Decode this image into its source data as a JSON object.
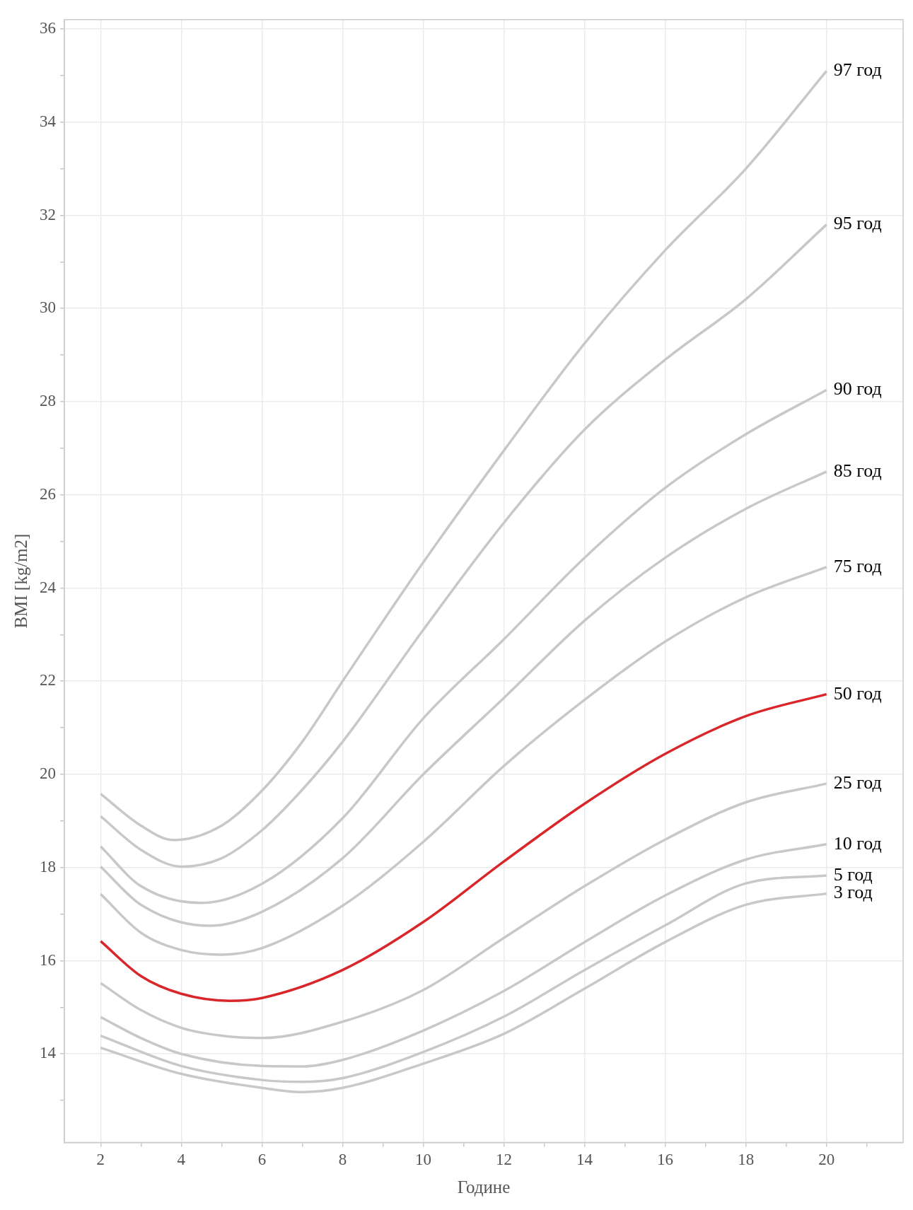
{
  "chart_data": {
    "type": "line",
    "xlabel": "Године",
    "ylabel": "BMI [kg/m2]",
    "xlim": [
      1.1,
      21.9
    ],
    "xticks": [
      2,
      {
        "value": 3,
        "label": null
      },
      4,
      {
        "value": 5,
        "label": null
      },
      6,
      {
        "value": 7,
        "label": null
      },
      8,
      {
        "value": 9,
        "label": null
      },
      10,
      {
        "value": 11,
        "label": null
      },
      12,
      {
        "value": 13,
        "label": null
      },
      14,
      {
        "value": 15,
        "label": null
      },
      16,
      {
        "value": 17,
        "label": null
      },
      18,
      {
        "value": 19,
        "label": null
      },
      20,
      {
        "value": 21,
        "label": null
      }
    ],
    "ylim": [
      12.1,
      36.2
    ],
    "yticks": [
      {
        "value": 13,
        "label": null
      },
      14,
      {
        "value": 15,
        "label": null
      },
      16,
      {
        "value": 17,
        "label": null
      },
      18,
      {
        "value": 19,
        "label": null
      },
      20,
      {
        "value": 21,
        "label": null
      },
      22,
      {
        "value": 23,
        "label": null
      },
      24,
      {
        "value": 25,
        "label": null
      },
      26,
      {
        "value": 27,
        "label": null
      },
      28,
      {
        "value": 29,
        "label": null
      },
      30,
      {
        "value": 31,
        "label": null
      },
      32,
      {
        "value": 33,
        "label": null
      },
      34,
      {
        "value": 35,
        "label": null
      },
      36
    ],
    "grid": true,
    "legend": false,
    "marker": "none",
    "line_style": "solid",
    "series": [
      {
        "name": "97 год",
        "color": "#c8c8c8",
        "x": [
          2,
          3,
          3.8,
          5,
          6,
          7,
          8,
          10,
          12,
          14,
          16,
          18,
          20
        ],
        "values": [
          19.58,
          18.9,
          18.59,
          18.9,
          19.65,
          20.7,
          22.0,
          24.55,
          26.95,
          29.25,
          31.25,
          33.0,
          35.1
        ]
      },
      {
        "name": "95 год",
        "color": "#c8c8c8",
        "x": [
          2,
          3,
          4,
          5,
          6,
          7,
          8,
          10,
          12,
          14,
          16,
          18,
          20
        ],
        "values": [
          19.1,
          18.38,
          18.02,
          18.2,
          18.8,
          19.67,
          20.7,
          23.1,
          25.4,
          27.4,
          28.9,
          30.2,
          31.8
        ]
      },
      {
        "name": "90 год",
        "color": "#c8c8c8",
        "x": [
          2,
          3,
          4.5,
          6,
          8,
          10,
          12,
          14,
          16,
          18,
          20
        ],
        "values": [
          18.45,
          17.6,
          17.24,
          17.65,
          19.06,
          21.2,
          22.9,
          24.65,
          26.15,
          27.3,
          28.25
        ]
      },
      {
        "name": "85 год",
        "color": "#c8c8c8",
        "x": [
          2,
          3,
          4.7,
          6,
          8,
          10,
          12,
          14,
          16,
          18,
          20
        ],
        "values": [
          18.02,
          17.2,
          16.75,
          17.05,
          18.2,
          20.0,
          21.64,
          23.3,
          24.65,
          25.7,
          26.5
        ]
      },
      {
        "name": "75 год",
        "color": "#c8c8c8",
        "x": [
          2,
          3,
          4,
          5,
          6,
          8,
          10,
          12,
          14,
          16,
          18,
          20
        ],
        "values": [
          17.43,
          16.6,
          16.23,
          16.13,
          16.27,
          17.18,
          18.55,
          20.18,
          21.6,
          22.85,
          23.8,
          24.45
        ]
      },
      {
        "name": "50 год",
        "color": "#d9262b",
        "x": [
          2,
          3,
          4,
          5.2,
          6,
          8,
          10,
          12,
          14,
          16,
          18,
          20
        ],
        "values": [
          16.42,
          15.67,
          15.29,
          15.14,
          15.2,
          15.8,
          16.83,
          18.13,
          19.37,
          20.44,
          21.25,
          21.72
        ]
      },
      {
        "name": "25 год",
        "color": "#c8c8c8",
        "x": [
          2,
          3,
          4,
          5,
          6,
          8,
          10,
          12,
          14,
          16,
          18,
          20
        ],
        "values": [
          15.52,
          14.94,
          14.56,
          14.39,
          14.34,
          14.69,
          15.37,
          16.49,
          17.6,
          18.6,
          19.4,
          19.8
        ]
      },
      {
        "name": "10 год",
        "color": "#c8c8c8",
        "x": [
          2,
          3,
          4,
          6,
          7,
          8,
          10,
          12,
          14,
          16,
          18,
          20
        ],
        "values": [
          14.79,
          14.34,
          14.0,
          13.74,
          13.73,
          13.87,
          14.5,
          15.35,
          16.4,
          17.4,
          18.17,
          18.5
        ]
      },
      {
        "name": "5 год",
        "color": "#c8c8c8",
        "x": [
          2,
          4,
          6,
          7,
          8,
          10,
          12,
          14,
          16,
          18,
          20
        ],
        "values": [
          14.39,
          13.74,
          13.44,
          13.4,
          13.48,
          14.04,
          14.8,
          15.8,
          16.76,
          17.66,
          17.83
        ]
      },
      {
        "name": "3 год",
        "color": "#c8c8c8",
        "x": [
          2,
          4,
          6,
          7,
          8,
          10,
          12,
          14,
          16,
          18,
          20
        ],
        "values": [
          14.13,
          13.57,
          13.27,
          13.18,
          13.27,
          13.79,
          14.43,
          15.4,
          16.4,
          17.2,
          17.44
        ]
      }
    ]
  }
}
